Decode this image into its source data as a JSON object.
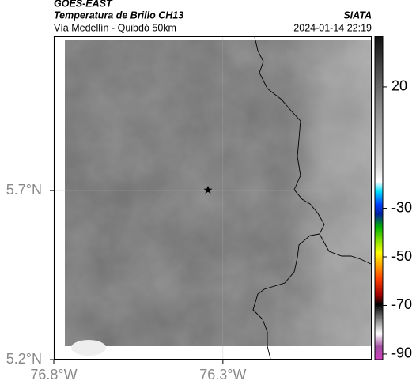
{
  "header": {
    "title": "GOES-EAST",
    "subtitle": "Temperatura de Brillo CH13",
    "location": "Vía Medellín - Quibdó 50km",
    "source": "SIATA",
    "datetime": "2024-01-14 22:19"
  },
  "map": {
    "xlim": [
      -76.8,
      -75.86
    ],
    "ylim": [
      5.2,
      6.156
    ],
    "xticks": [
      {
        "value": -76.8,
        "label": "76.8°W"
      },
      {
        "value": -76.3,
        "label": "76.3°W"
      }
    ],
    "yticks": [
      {
        "value": 5.2,
        "label": "5.2°N"
      },
      {
        "value": 5.7,
        "label": "5.7°N"
      }
    ]
  },
  "colorbar": {
    "lim": [
      -92.3,
      40.8
    ],
    "ticks": [
      20,
      -30,
      -50,
      -70,
      -90
    ]
  }
}
